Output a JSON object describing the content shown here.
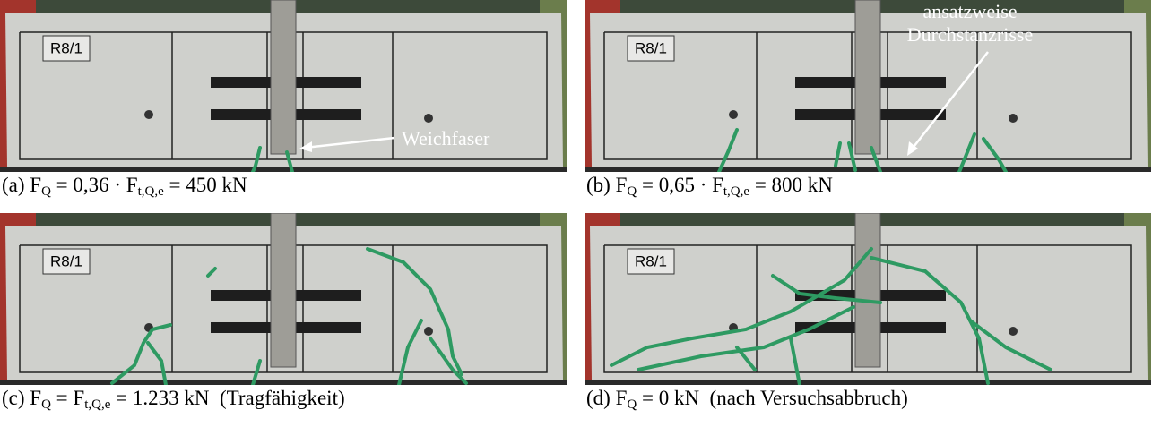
{
  "panels": [
    {
      "label": "R8/1",
      "annotation": [
        "Weichfaser"
      ],
      "caption": [
        "(a) F",
        "Q",
        " = 0,36 · F",
        "t,Q,e",
        " = 450 kN"
      ]
    },
    {
      "label": "R8/1",
      "annotation": [
        "ansatzweise",
        "Durchstanzrisse"
      ],
      "caption": [
        "(b) F",
        "Q",
        " = 0,65 · F",
        "t,Q,e",
        " = 800 kN"
      ]
    },
    {
      "label": "R8/1",
      "annotation": [],
      "caption": [
        "(c) F",
        "Q",
        " = F",
        "t,Q,e",
        " = 1.233 kN  (Tragfähigkeit)"
      ]
    },
    {
      "label": "R8/1",
      "annotation": [],
      "caption": [
        "(d) F",
        "Q",
        " = 0 kN  (nach Versuchsabbruch)"
      ]
    }
  ]
}
